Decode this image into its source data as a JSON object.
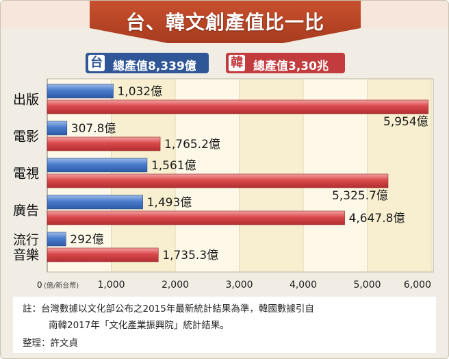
{
  "title": "台、韓文創產值比一比",
  "legend": {
    "taiwan": {
      "badge": "台",
      "text": "總產值8,339億",
      "color": "#2f5797"
    },
    "korea": {
      "badge": "韓",
      "text": "總產值3,30兆",
      "color": "#c23b3d"
    }
  },
  "chart_data": {
    "type": "bar",
    "orientation": "horizontal",
    "categories": [
      "出版",
      "電影",
      "電視",
      "廣告",
      "流行音樂"
    ],
    "category_label_lines": [
      [
        "出版"
      ],
      [
        "電影"
      ],
      [
        "電視"
      ],
      [
        "廣告"
      ],
      [
        "流行",
        "音樂"
      ]
    ],
    "series": [
      {
        "name": "台",
        "color": "#3d6fc0",
        "values": [
          1032,
          307.8,
          1561,
          1493,
          292
        ],
        "labels": [
          "1,032億",
          "307.8億",
          "1,561億",
          "1,493億",
          "292億"
        ]
      },
      {
        "name": "韓",
        "color": "#d6474b",
        "values": [
          5954,
          1765.2,
          5325.7,
          4647.8,
          1735.3
        ],
        "labels": [
          "5,954億",
          "1,765.2億",
          "5,325.7億",
          "4,647.8億",
          "1,735.3億"
        ]
      }
    ],
    "xlim": [
      0,
      6000
    ],
    "xticks": [
      0,
      1000,
      2000,
      3000,
      4000,
      5000,
      6000
    ],
    "xtick_labels": [
      "0",
      "1,000",
      "2,000",
      "3,000",
      "4,000",
      "5,000",
      "6,000"
    ],
    "unit_label": "(億/新台幣)",
    "grid": true
  },
  "note": {
    "line1": "註：台灣數據以文化部公布之2015年最新統計結果為準，韓國數據引自",
    "line2": "南韓2017年「文化產業振興院」統計結果。",
    "credit": "整理：許文貞"
  }
}
